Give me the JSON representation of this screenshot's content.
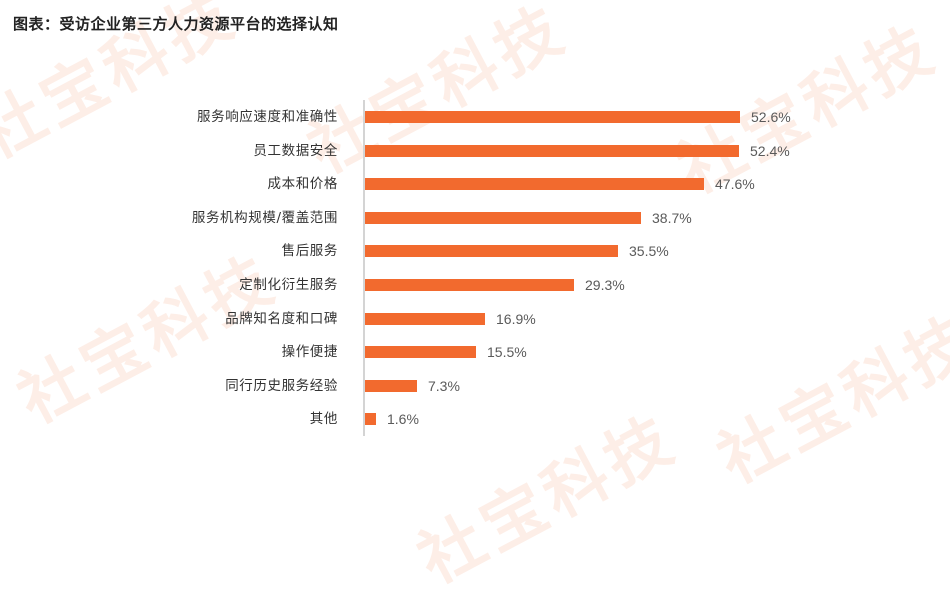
{
  "title": "图表：受访企业第三方人力资源平台的选择认知",
  "watermark": {
    "text": "社宝科技",
    "color": "#fdeee7"
  },
  "colors": {
    "bar": "#f26a2e",
    "axis": "#d4d4d4",
    "category_text": "#333333",
    "value_text": "#5a5a5a"
  },
  "chart_data": {
    "type": "bar",
    "orientation": "horizontal",
    "title": "图表：受访企业第三方人力资源平台的选择认知",
    "xlabel": "",
    "ylabel": "",
    "categories": [
      "服务响应速度和准确性",
      "员工数据安全",
      "成本和价格",
      "服务机构规模/覆盖范围",
      "售后服务",
      "定制化衍生服务",
      "品牌知名度和口碑",
      "操作便捷",
      "同行历史服务经验",
      "其他"
    ],
    "values": [
      52.6,
      52.4,
      47.6,
      38.7,
      35.5,
      29.3,
      16.9,
      15.5,
      7.3,
      1.6
    ],
    "value_labels": [
      "52.6%",
      "52.4%",
      "47.6%",
      "38.7%",
      "35.5%",
      "29.3%",
      "16.9%",
      "15.5%",
      "7.3%",
      "1.6%"
    ],
    "unit": "%",
    "xlim": [
      0,
      60
    ],
    "grid": false,
    "legend": "none",
    "data_labels": true
  }
}
